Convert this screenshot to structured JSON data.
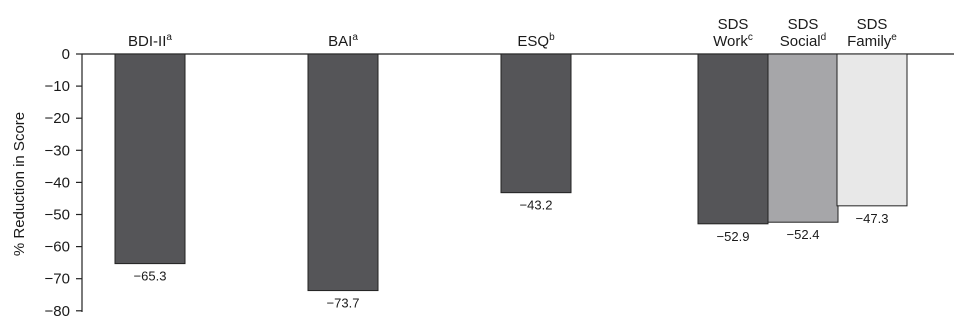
{
  "chart_data": {
    "type": "bar",
    "title": "",
    "xlabel": "",
    "ylabel": "% Reduction in Score",
    "ylim": [
      -80,
      0
    ],
    "yticks": [
      0,
      -10,
      -20,
      -30,
      -40,
      -50,
      -60,
      -70,
      -80
    ],
    "ytick_labels": [
      "0",
      "−10",
      "−20",
      "−30",
      "−40",
      "−50",
      "−60",
      "−70",
      "−80"
    ],
    "grid": false,
    "categories": [
      {
        "lines": [
          {
            "text": "BDI-II",
            "sup": "a"
          }
        ],
        "value": -65.3,
        "value_label": "−65.3",
        "color": "#555558"
      },
      {
        "lines": [
          {
            "text": "BAI",
            "sup": "a"
          }
        ],
        "value": -73.7,
        "value_label": "−73.7",
        "color": "#555558"
      },
      {
        "lines": [
          {
            "text": "ESQ",
            "sup": "b"
          }
        ],
        "value": -43.2,
        "value_label": "−43.2",
        "color": "#555558"
      },
      {
        "lines": [
          {
            "text": "SDS",
            "sup": ""
          },
          {
            "text": "Work",
            "sup": "c"
          }
        ],
        "value": -52.9,
        "value_label": "−52.9",
        "color": "#555558"
      },
      {
        "lines": [
          {
            "text": "SDS",
            "sup": ""
          },
          {
            "text": "Social",
            "sup": "d"
          }
        ],
        "value": -52.4,
        "value_label": "−52.4",
        "color": "#a6a6a9"
      },
      {
        "lines": [
          {
            "text": "SDS",
            "sup": ""
          },
          {
            "text": "Family",
            "sup": "e"
          }
        ],
        "value": -47.3,
        "value_label": "−47.3",
        "color": "#e8e8e8"
      }
    ]
  }
}
